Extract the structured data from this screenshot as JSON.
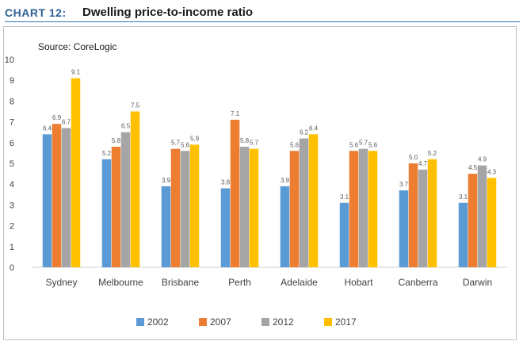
{
  "header": {
    "chart_number": "CHART 12:",
    "title": "Dwelling price-to-income ratio"
  },
  "chart_data": {
    "type": "bar",
    "title": "Dwelling price-to-income ratio",
    "subtitle": "Source: CoreLogic",
    "xlabel": "",
    "ylabel": "",
    "ylim": [
      0,
      10
    ],
    "yticks": [
      "0",
      "1",
      "2",
      "3",
      "4",
      "5",
      "6",
      "7",
      "8",
      "9",
      "10"
    ],
    "grid": false,
    "legend_position": "bottom",
    "categories": [
      "Sydney",
      "Melbourne",
      "Brisbane",
      "Perth",
      "Adelaide",
      "Hobart",
      "Canberra",
      "Darwin"
    ],
    "series": [
      {
        "name": "2002",
        "color": "#5b9bd5",
        "values": [
          6.4,
          5.2,
          3.9,
          3.8,
          3.9,
          3.1,
          3.7,
          3.1
        ],
        "labels": [
          "6.4",
          "5.2",
          "3.9",
          "3.8",
          "3.9",
          "3.1",
          "3.7",
          "3.1"
        ]
      },
      {
        "name": "2007",
        "color": "#ed7d31",
        "values": [
          6.9,
          5.8,
          5.7,
          7.1,
          5.6,
          5.6,
          5.0,
          4.5
        ],
        "labels": [
          "6.9",
          "5.8",
          "5.7",
          "7.1",
          "5.6",
          "5.6",
          "5.0",
          "4.5"
        ]
      },
      {
        "name": "2012",
        "color": "#a5a5a5",
        "values": [
          6.7,
          6.5,
          5.6,
          5.8,
          6.2,
          5.7,
          4.7,
          4.9
        ],
        "labels": [
          "6.7",
          "6.5",
          "5.6",
          "5.8",
          "6.2",
          "5.7",
          "4.7",
          "4.9"
        ]
      },
      {
        "name": "2017",
        "color": "#ffc000",
        "values": [
          9.1,
          7.5,
          5.9,
          5.7,
          6.4,
          5.6,
          5.2,
          4.3
        ],
        "labels": [
          "9.1",
          "7.5",
          "5.9",
          "5.7",
          "6.4",
          "5.6",
          "5.2",
          "4.3"
        ]
      }
    ]
  }
}
